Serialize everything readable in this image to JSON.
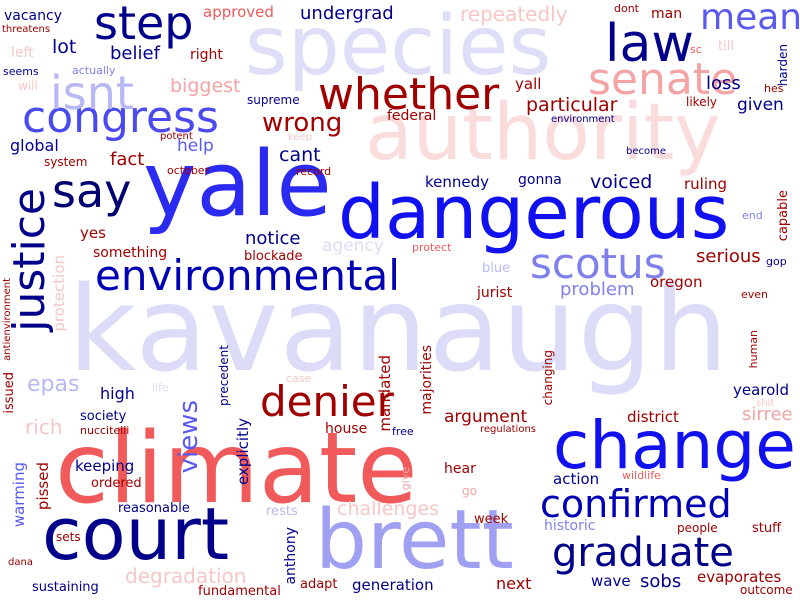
{
  "colors": {
    "background": "#ffffff",
    "dark_blue": "#00008b",
    "blue": "#1e1ef5",
    "light_blue": "#9090f0",
    "pale_blue": "#d8d8f8",
    "red": "#f05a5a",
    "dark_red": "#a00000",
    "pink": "#f7c7c7"
  },
  "words": [
    "kavanaugh",
    "climate",
    "species",
    "yale",
    "dangerous",
    "authority",
    "brett",
    "court",
    "change",
    "law",
    "senate",
    "whether",
    "congress",
    "isnt",
    "step",
    "mean",
    "say",
    "justice",
    "environmental",
    "scotus",
    "denier",
    "confirmed",
    "graduate",
    "views",
    "undergrad",
    "repeatedly",
    "vacancy",
    "threatens",
    "approved",
    "dont",
    "man",
    "left",
    "seems",
    "will",
    "actually",
    "lot",
    "belief",
    "right",
    "biggest",
    "sc",
    "till",
    "harden",
    "hes",
    "supreme",
    "potent",
    "yall",
    "loss",
    "given",
    "particular",
    "likely",
    "environment",
    "keep",
    "federal",
    "wrong",
    "global",
    "help",
    "fact",
    "system",
    "october",
    "record",
    "cant",
    "become",
    "kennedy",
    "gonna",
    "voiced",
    "ruling",
    "end",
    "capable",
    "gop",
    "notice",
    "blockade",
    "agency",
    "protect",
    "yes",
    "something",
    "blue",
    "serious",
    "jurist",
    "oregon",
    "problem",
    "protection",
    "antienvironment",
    "precedent",
    "epas",
    "life",
    "case",
    "mandated",
    "majorities",
    "changing",
    "human",
    "even",
    "high",
    "issued",
    "rich",
    "society",
    "nuccitelli",
    "anthony",
    "explicitly",
    "house",
    "argument",
    "district",
    "yearold",
    "sirree",
    "shit",
    "free",
    "regulations",
    "warming",
    "pissed",
    "keeping",
    "ordered",
    "hear",
    "wildlife",
    "action",
    "give",
    "go",
    "reasonable",
    "rests",
    "challenges",
    "week",
    "historic",
    "people",
    "stuff",
    "sets",
    "dana",
    "degradation",
    "adapt",
    "generation",
    "next",
    "sobs",
    "wave",
    "evaporates",
    "sustaining",
    "fundamental",
    "outcome"
  ]
}
